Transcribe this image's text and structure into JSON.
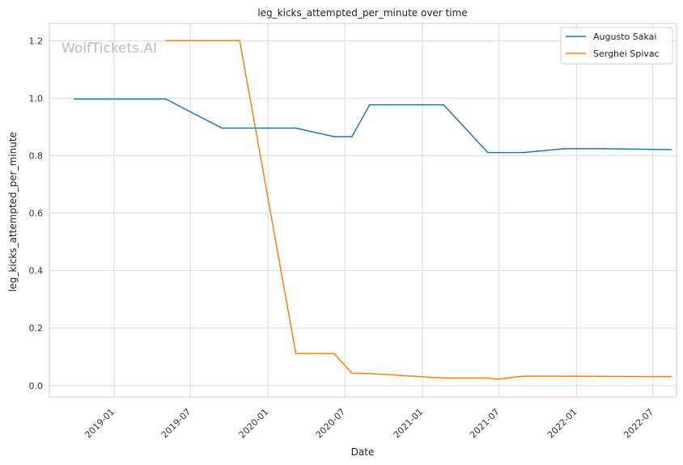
{
  "chart_data": {
    "type": "line",
    "title": "leg_kicks_attempted_per_minute over time",
    "xlabel": "Date",
    "ylabel": "leg_kicks_attempted_per_minute",
    "watermark": "WolfTickets.AI",
    "x_range": [
      "2018-08-01",
      "2022-08-26"
    ],
    "ylim": [
      -0.04,
      1.26
    ],
    "y_ticks": [
      0.0,
      0.2,
      0.4,
      0.6,
      0.8,
      1.0,
      1.2
    ],
    "y_tick_labels": [
      "0.0",
      "0.2",
      "0.4",
      "0.6",
      "0.8",
      "1.0",
      "1.2"
    ],
    "x_ticks": [
      "2019-01-01",
      "2019-07-01",
      "2020-01-01",
      "2020-07-01",
      "2021-01-01",
      "2021-07-01",
      "2022-01-01",
      "2022-07-01"
    ],
    "x_tick_labels": [
      "2019-01",
      "2019-07",
      "2020-01",
      "2020-07",
      "2021-01",
      "2021-07",
      "2022-01",
      "2022-07"
    ],
    "grid": true,
    "legend_position": "top-right",
    "series": [
      {
        "name": "Augusto Sakai",
        "color": "#1f77b4",
        "points": [
          [
            "2018-09-29",
            0.997
          ],
          [
            "2019-05-04",
            0.997
          ],
          [
            "2019-09-14",
            0.896
          ],
          [
            "2020-03-07",
            0.896
          ],
          [
            "2020-06-06",
            0.866
          ],
          [
            "2020-07-18",
            0.866
          ],
          [
            "2020-08-29",
            0.977
          ],
          [
            "2021-02-20",
            0.977
          ],
          [
            "2021-06-05",
            0.811
          ],
          [
            "2021-08-28",
            0.811
          ],
          [
            "2021-12-04",
            0.824
          ],
          [
            "2022-03-05",
            0.824
          ],
          [
            "2022-08-13",
            0.821
          ]
        ]
      },
      {
        "name": "Serghei Spivac",
        "color": "#ff7f0e",
        "points": [
          [
            "2019-05-04",
            1.2
          ],
          [
            "2019-10-26",
            1.2
          ],
          [
            "2020-03-07",
            0.111
          ],
          [
            "2020-06-06",
            0.111
          ],
          [
            "2020-07-18",
            0.043
          ],
          [
            "2020-08-29",
            0.042
          ],
          [
            "2021-02-20",
            0.026
          ],
          [
            "2021-06-05",
            0.026
          ],
          [
            "2021-06-26",
            0.022
          ],
          [
            "2021-08-28",
            0.033
          ],
          [
            "2021-12-04",
            0.033
          ],
          [
            "2022-03-05",
            0.032
          ],
          [
            "2022-08-13",
            0.031
          ]
        ]
      }
    ]
  }
}
